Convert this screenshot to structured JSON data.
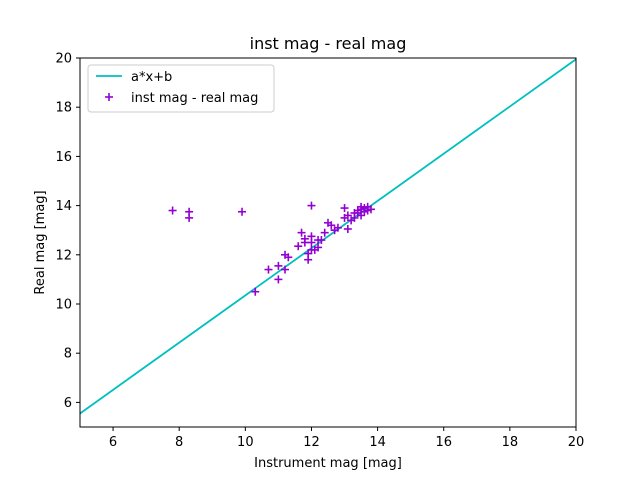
{
  "chart_data": {
    "type": "scatter",
    "title": "inst mag - real mag",
    "xlabel": "Instrument mag [mag]",
    "ylabel": "Real mag [mag]",
    "xlim": [
      5,
      20
    ],
    "ylim": [
      5,
      20
    ],
    "xticks": [
      "6",
      "8",
      "10",
      "12",
      "14",
      "16",
      "18",
      "20"
    ],
    "yticks": [
      "6",
      "8",
      "10",
      "12",
      "14",
      "16",
      "18",
      "20"
    ],
    "grid": false,
    "legend_placement": "upper-left",
    "colors": {
      "fit_line": "#00bfbf",
      "points": "#9400d3"
    },
    "series": [
      {
        "name": "a*x+b",
        "kind": "line",
        "x": [
          5,
          20
        ],
        "y": [
          5.55,
          19.95
        ]
      },
      {
        "name": "inst mag - real mag",
        "kind": "scatter",
        "marker": "plus",
        "x": [
          7.8,
          8.3,
          8.3,
          9.9,
          10.3,
          10.7,
          11.0,
          11.0,
          11.2,
          11.2,
          11.3,
          11.6,
          11.7,
          11.8,
          11.8,
          11.9,
          11.9,
          12.0,
          12.0,
          12.0,
          12.0,
          12.1,
          12.2,
          12.2,
          12.3,
          12.4,
          12.5,
          12.6,
          12.7,
          12.8,
          13.0,
          13.0,
          13.1,
          13.1,
          13.2,
          13.3,
          13.3,
          13.4,
          13.4,
          13.5,
          13.5,
          13.5,
          13.6,
          13.6,
          13.7,
          13.7,
          13.8
        ],
        "y": [
          13.8,
          13.75,
          13.5,
          13.75,
          10.5,
          11.4,
          11.0,
          11.55,
          12.0,
          11.4,
          11.9,
          12.35,
          12.9,
          12.5,
          12.65,
          11.8,
          12.05,
          12.2,
          12.5,
          12.75,
          14.0,
          12.2,
          12.6,
          12.3,
          12.6,
          12.9,
          13.3,
          13.2,
          13.0,
          13.1,
          13.5,
          13.9,
          13.05,
          13.6,
          13.4,
          13.7,
          13.5,
          13.7,
          13.8,
          13.6,
          13.85,
          13.95,
          13.75,
          13.9,
          13.8,
          13.95,
          13.85
        ]
      }
    ]
  }
}
